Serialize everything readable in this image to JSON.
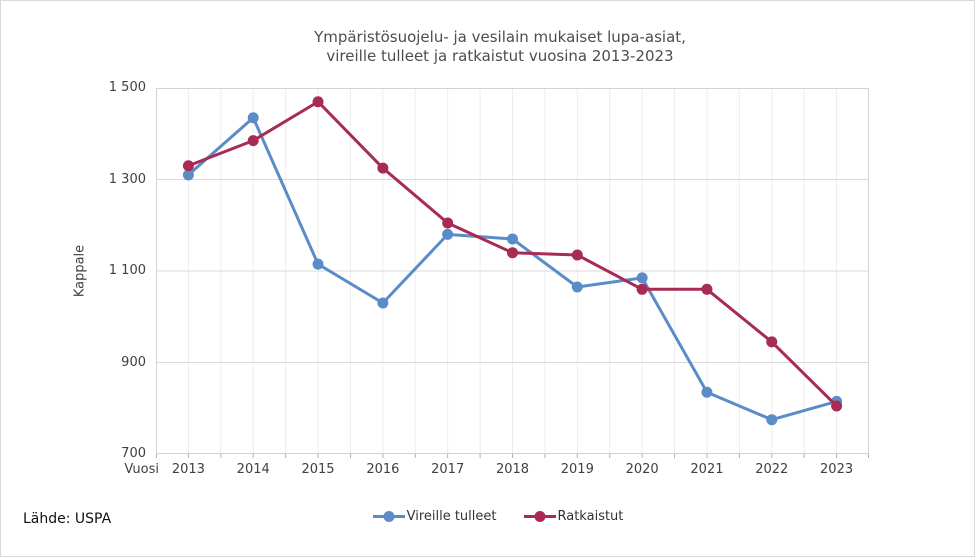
{
  "title": {
    "line1": "Ympäristösuojelu- ja vesilain mukaiset lupa-asiat,",
    "line2": "vireille tulleet ja ratkaistut vuosina 2013-2023"
  },
  "source": "Lähde: USPA",
  "chart_data": {
    "type": "line",
    "title": "Ympäristösuojelu- ja vesilain mukaiset lupa-asiat, vireille tulleet ja ratkaistut vuosina 2013-2023",
    "categories": [
      "2013",
      "2014",
      "2015",
      "2016",
      "2017",
      "2018",
      "2019",
      "2020",
      "2021",
      "2022",
      "2023"
    ],
    "xlabel": "Vuosi",
    "ylabel": "Kappale",
    "ylim": [
      700,
      1500
    ],
    "yticks": [
      {
        "label": "1 500",
        "value": 1500
      },
      {
        "label": "1 300",
        "value": 1300
      },
      {
        "label": "1 100",
        "value": 1100
      },
      {
        "label": "900",
        "value": 900
      },
      {
        "label": "700",
        "value": 700
      }
    ],
    "grid": "horizontal major lines, light vertical minor lines at half-year steps",
    "legend_position": "bottom-center",
    "series": [
      {
        "name": "Vireille tulleet",
        "color": "#5a8cc8",
        "values": [
          1310,
          1435,
          1115,
          1030,
          1180,
          1170,
          1065,
          1085,
          835,
          775,
          815
        ]
      },
      {
        "name": "Ratkaistut",
        "color": "#a72b54",
        "values": [
          1330,
          1385,
          1470,
          1325,
          1205,
          1140,
          1135,
          1060,
          1060,
          945,
          805
        ]
      }
    ],
    "style_colors": {
      "major_grid": "#d9d9d9",
      "minor_grid": "#ededed",
      "plot_border": "#d3d3d3",
      "axis_tick": "#b0b0b0",
      "title_text": "#4d4d4d",
      "axis_text": "#404040"
    }
  }
}
